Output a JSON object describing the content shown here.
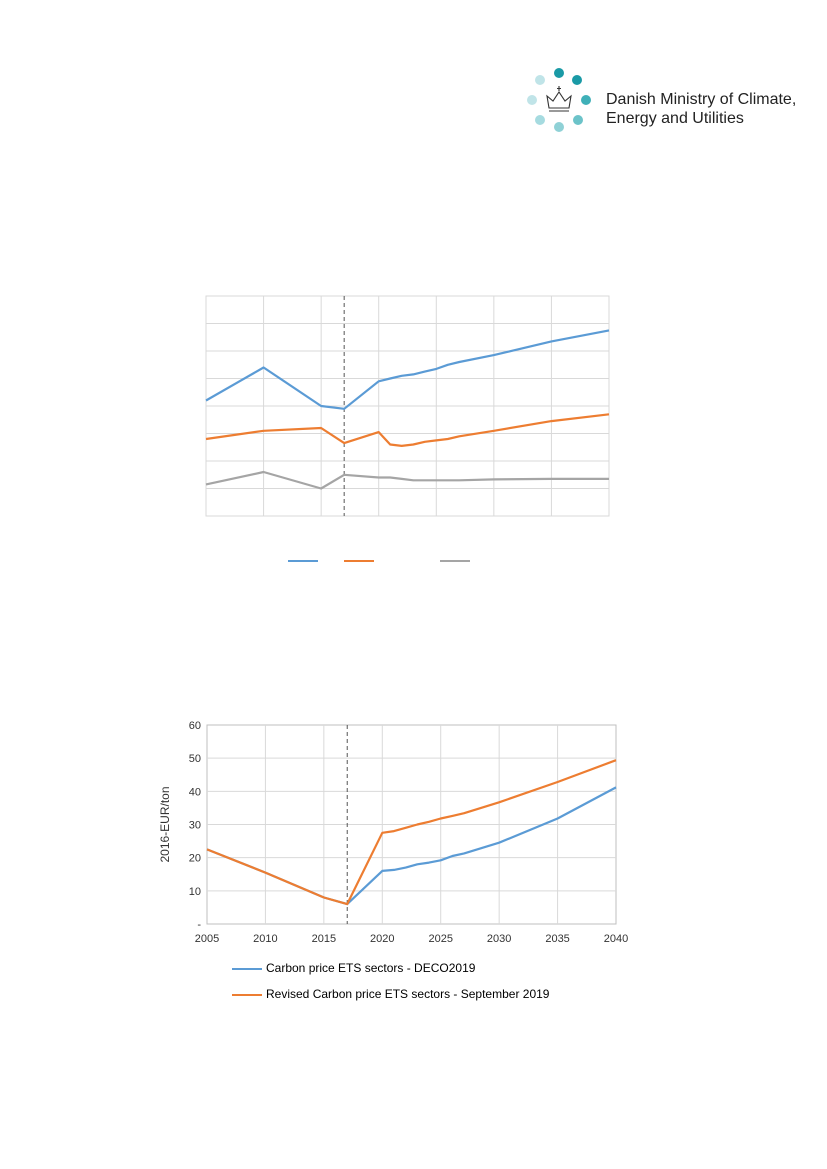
{
  "header": {
    "logo_text_line1": "Danish Ministry of Climate,",
    "logo_text_line2": "Energy and Utilities",
    "logo_icon": "crown-with-dots-logo"
  },
  "colors": {
    "blue": "#5b9bd5",
    "orange": "#ed7d31",
    "gray": "#a5a5a5",
    "logo_dark": "#1a9aa6",
    "logo_mid": "#6cc3c9",
    "logo_light": "#c0e4e8"
  },
  "chart_data": [
    {
      "type": "line",
      "title": "",
      "xlabel": "",
      "ylabel": "",
      "x": [
        2005,
        2010,
        2015,
        2017,
        2020,
        2021,
        2022,
        2023,
        2024,
        2025,
        2026,
        2027,
        2030,
        2035,
        2040
      ],
      "xlim": [
        2005,
        2040
      ],
      "ylim": [
        0,
        8
      ],
      "marker_line_x": 2017,
      "grid": true,
      "series": [
        {
          "color": "blue",
          "values": [
            4.2,
            5.4,
            4.0,
            3.9,
            4.9,
            5.0,
            5.1,
            5.15,
            5.25,
            5.35,
            5.5,
            5.6,
            5.85,
            6.35,
            6.75
          ]
        },
        {
          "color": "orange",
          "values": [
            2.8,
            3.1,
            3.2,
            2.65,
            3.05,
            2.6,
            2.55,
            2.6,
            2.7,
            2.75,
            2.8,
            2.9,
            3.1,
            3.45,
            3.7
          ]
        },
        {
          "color": "gray",
          "values": [
            1.15,
            1.6,
            1.0,
            1.5,
            1.4,
            1.4,
            1.35,
            1.3,
            1.3,
            1.3,
            1.3,
            1.3,
            1.33,
            1.35,
            1.35
          ]
        }
      ],
      "legend": {
        "position": "bottom",
        "entries": [
          "",
          "",
          ""
        ]
      }
    },
    {
      "type": "line",
      "title": "",
      "xlabel": "",
      "ylabel": "2016-EUR/ton",
      "x": [
        2005,
        2010,
        2015,
        2017,
        2020,
        2021,
        2022,
        2023,
        2024,
        2025,
        2026,
        2027,
        2030,
        2035,
        2040
      ],
      "xlim": [
        2005,
        2040
      ],
      "ylim": [
        0,
        60
      ],
      "y_ticks": [
        "-",
        "10",
        "20",
        "30",
        "40",
        "50",
        "60"
      ],
      "x_ticks": [
        "2005",
        "2010",
        "2015",
        "2020",
        "2025",
        "2030",
        "2035",
        "2040"
      ],
      "marker_line_x": 2017,
      "grid": true,
      "series": [
        {
          "name": "Carbon price ETS sectors - DECO2019",
          "color": "blue",
          "values": [
            22.5,
            15.5,
            8,
            6,
            16,
            16.3,
            17,
            18,
            18.5,
            19.2,
            20.5,
            21.3,
            24.5,
            31.8,
            41.2
          ]
        },
        {
          "name": "Revised Carbon price ETS sectors - September 2019",
          "color": "orange",
          "values": [
            22.5,
            15.5,
            8,
            6,
            27.5,
            28,
            29,
            30,
            30.8,
            31.8,
            32.6,
            33.4,
            36.7,
            42.8,
            49.4
          ]
        }
      ],
      "legend": {
        "position": "bottom"
      }
    }
  ]
}
